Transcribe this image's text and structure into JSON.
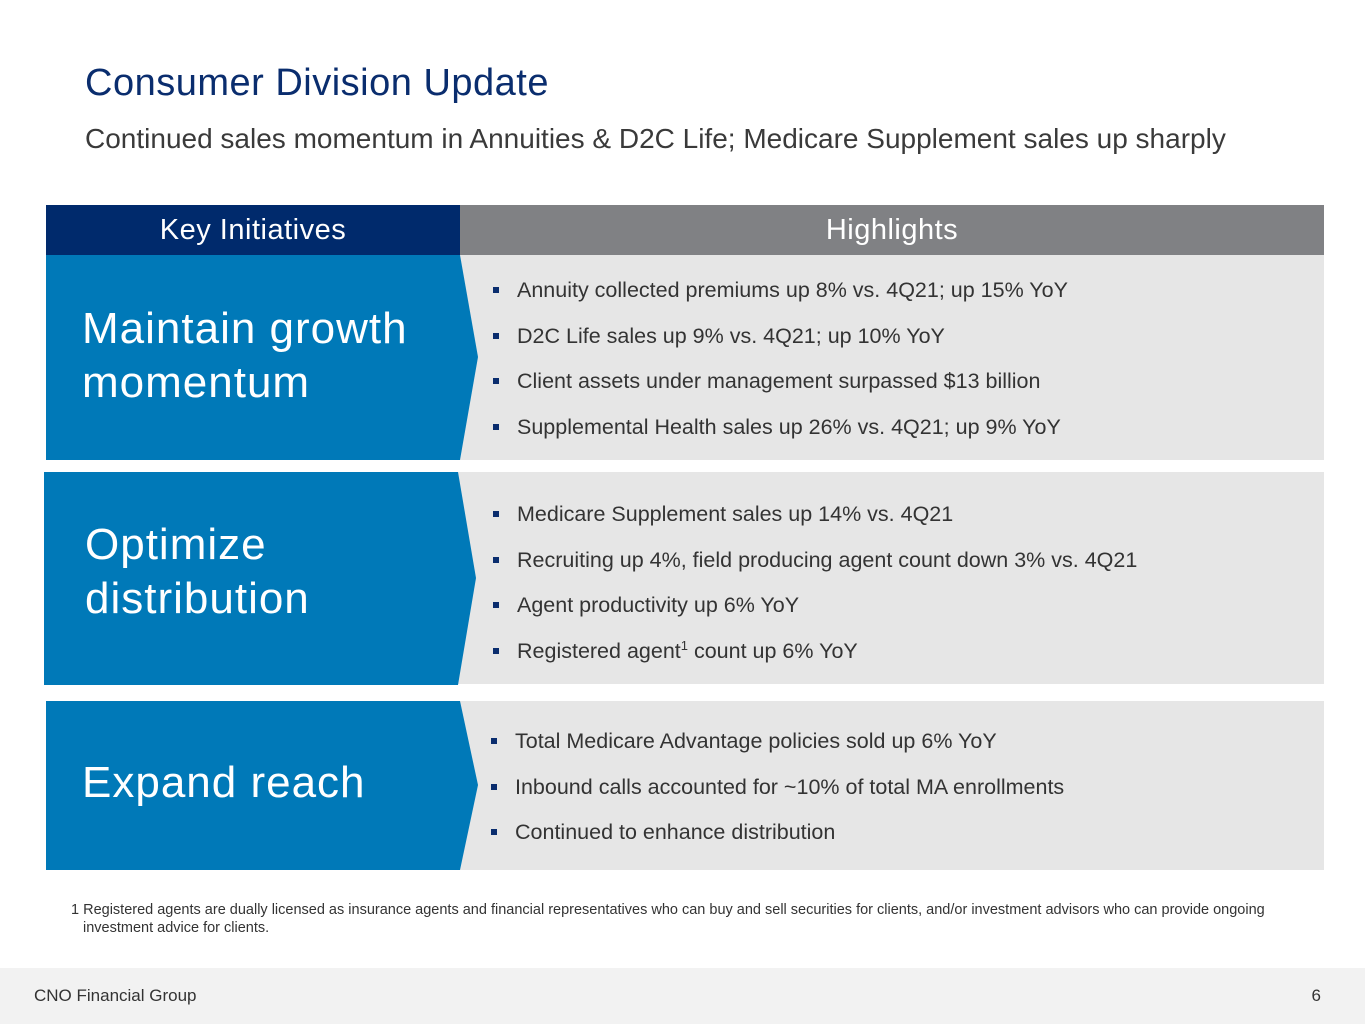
{
  "title": "Consumer Division Update",
  "subtitle": "Continued sales momentum in Annuities & D2C Life; Medicare Supplement sales up sharply",
  "headers": {
    "left": "Key Initiatives",
    "right": "Highlights"
  },
  "colors": {
    "navy": "#002a6c",
    "blue": "#0079b8",
    "gray_header": "#808184",
    "panel_gray": "#e6e6e6"
  },
  "sections": [
    {
      "label_line1": "Maintain growth",
      "label_line2": "momentum",
      "bullets": [
        "Annuity collected premiums up 8% vs. 4Q21; up 15% YoY",
        "D2C Life sales up 9% vs. 4Q21; up 10% YoY",
        "Client assets under management surpassed $13 billion",
        "Supplemental Health sales up 26% vs. 4Q21; up 9% YoY"
      ]
    },
    {
      "label_line1": "Optimize",
      "label_line2": "distribution",
      "bullets": [
        "Medicare Supplement sales up 14% vs. 4Q21",
        "Recruiting up 4%, field producing agent count down 3% vs. 4Q21",
        "Agent productivity up 6% YoY",
        {
          "before": "Registered agent",
          "sup": "1",
          "after": " count up 6% YoY"
        }
      ]
    },
    {
      "label_line1": "Expand reach",
      "bullets": [
        "Total Medicare Advantage policies sold up 6% YoY",
        "Inbound calls accounted for ~10% of total MA enrollments",
        "Continued to enhance distribution"
      ]
    }
  ],
  "footnote": "1 Registered agents are dually licensed as insurance agents and financial representatives who can buy and sell securities for clients, and/or investment advisors who can provide ongoing investment advice for clients.",
  "footer": {
    "company": "CNO Financial Group",
    "page_number": "6"
  }
}
